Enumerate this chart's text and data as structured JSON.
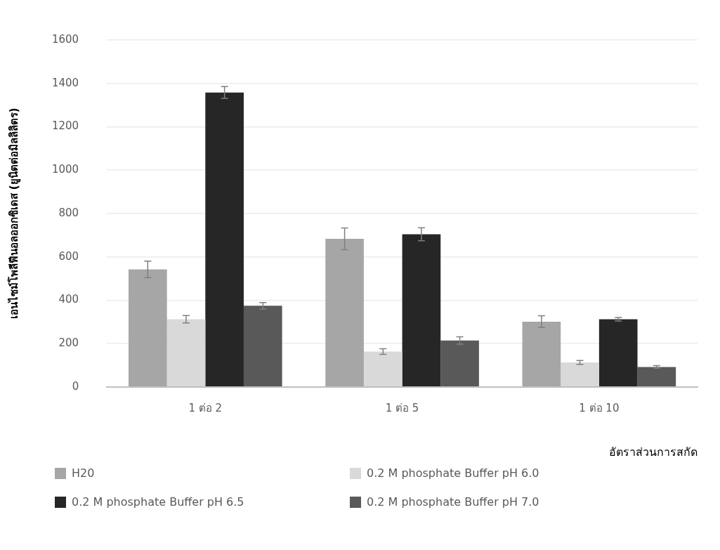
{
  "chart_data": {
    "type": "bar",
    "xlabel": "อัตราส่วนการสกัด",
    "ylabel": "เอนไซม์โพลีฟีนอลออกซิเดส (ยูนิตต่อมิลลิลิตร)",
    "categories": [
      "1 ต่อ 2",
      "1 ต่อ 5",
      "1 ต่อ 10"
    ],
    "series": [
      {
        "name": "H20",
        "color": "#a6a6a6",
        "values": [
          542,
          683,
          301
        ],
        "errors": [
          38,
          50,
          27
        ]
      },
      {
        "name": "0.2 M phosphate Buffer pH 6.0",
        "color": "#d9d9d9",
        "values": [
          312,
          163,
          113
        ],
        "errors": [
          17,
          13,
          9
        ]
      },
      {
        "name": "0.2 M phosphate Buffer pH 6.5",
        "color": "#262626",
        "values": [
          1358,
          704,
          312
        ],
        "errors": [
          27,
          30,
          8
        ]
      },
      {
        "name": "0.2 M phosphate Buffer pH 7.0",
        "color": "#595959",
        "values": [
          374,
          214,
          92
        ],
        "errors": [
          15,
          17,
          6
        ]
      }
    ],
    "ylim": [
      0,
      1600
    ],
    "yticks": [
      0,
      200,
      400,
      600,
      800,
      1000,
      1200,
      1400,
      1600
    ],
    "grid": "y",
    "legend": "bottom"
  }
}
